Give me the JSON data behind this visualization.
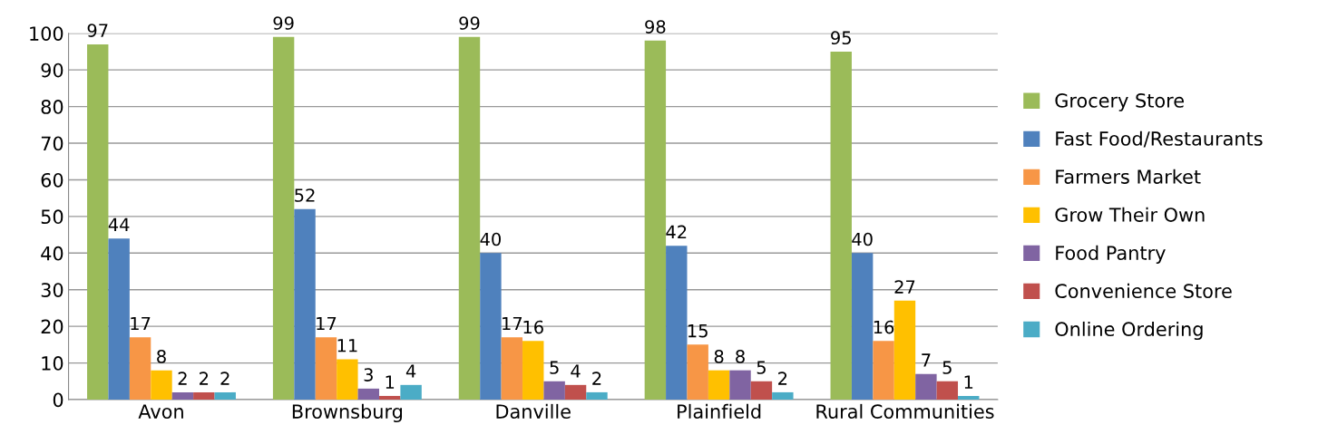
{
  "chart_data": {
    "type": "bar",
    "categories": [
      "Avon",
      "Brownsburg",
      "Danville",
      "Plainfield",
      "Rural Communities"
    ],
    "series": [
      {
        "name": "Grocery Store",
        "color": "#9bbb59",
        "values": [
          97,
          99,
          99,
          98,
          95
        ]
      },
      {
        "name": "Fast Food/Restaurants",
        "color": "#4f81bd",
        "values": [
          44,
          52,
          40,
          42,
          40
        ]
      },
      {
        "name": "Farmers Market",
        "color": "#f79646",
        "values": [
          17,
          17,
          17,
          15,
          16
        ]
      },
      {
        "name": "Grow Their Own",
        "color": "#ffc000",
        "values": [
          8,
          11,
          16,
          8,
          27
        ]
      },
      {
        "name": "Food Pantry",
        "color": "#8064a2",
        "values": [
          2,
          3,
          5,
          8,
          7
        ]
      },
      {
        "name": "Convenience Store",
        "color": "#c0504d",
        "values": [
          2,
          1,
          4,
          5,
          5
        ]
      },
      {
        "name": "Online Ordering",
        "color": "#4bacc6",
        "values": [
          2,
          4,
          2,
          2,
          1
        ]
      }
    ],
    "ylim": [
      0,
      100
    ],
    "yticks": [
      0,
      10,
      20,
      30,
      40,
      50,
      60,
      70,
      80,
      90,
      100
    ],
    "grid": "y",
    "legend": "right",
    "data_labels": true
  }
}
